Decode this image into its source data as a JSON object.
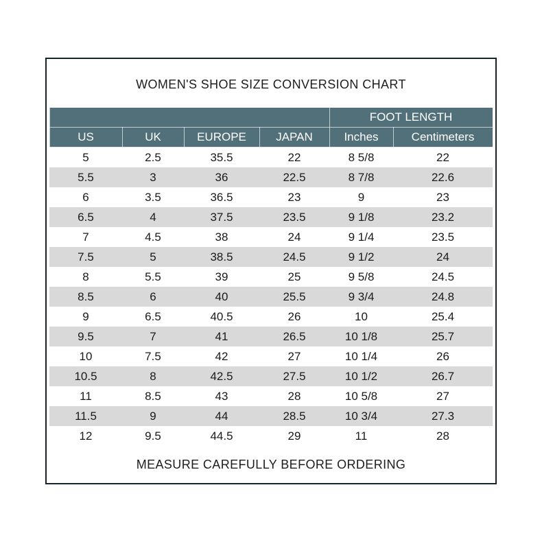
{
  "title": "WOMEN'S SHOE SIZE CONVERSION CHART",
  "footer": "MEASURE CAREFULLY BEFORE ORDERING",
  "chart_data": {
    "type": "table",
    "group_header": "FOOT LENGTH",
    "group_header_spans": [
      "Inches",
      "Centimeters"
    ],
    "columns": [
      "US",
      "UK",
      "EUROPE",
      "JAPAN",
      "Inches",
      "Centimeters"
    ],
    "rows": [
      [
        "5",
        "2.5",
        "35.5",
        "22",
        "8 5/8",
        "22"
      ],
      [
        "5.5",
        "3",
        "36",
        "22.5",
        "8 7/8",
        "22.6"
      ],
      [
        "6",
        "3.5",
        "36.5",
        "23",
        "9",
        "23"
      ],
      [
        "6.5",
        "4",
        "37.5",
        "23.5",
        "9 1/8",
        "23.2"
      ],
      [
        "7",
        "4.5",
        "38",
        "24",
        "9 1/4",
        "23.5"
      ],
      [
        "7.5",
        "5",
        "38.5",
        "24.5",
        "9 1/2",
        "24"
      ],
      [
        "8",
        "5.5",
        "39",
        "25",
        "9 5/8",
        "24.5"
      ],
      [
        "8.5",
        "6",
        "40",
        "25.5",
        "9 3/4",
        "24.8"
      ],
      [
        "9",
        "6.5",
        "40.5",
        "26",
        "10",
        "25.4"
      ],
      [
        "9.5",
        "7",
        "41",
        "26.5",
        "10 1/8",
        "25.7"
      ],
      [
        "10",
        "7.5",
        "42",
        "27",
        "10 1/4",
        "26"
      ],
      [
        "10.5",
        "8",
        "42.5",
        "27.5",
        "10 1/2",
        "26.7"
      ],
      [
        "11",
        "8.5",
        "43",
        "28",
        "10 5/8",
        "27"
      ],
      [
        "11.5",
        "9",
        "44",
        "28.5",
        "10 3/4",
        "27.3"
      ],
      [
        "12",
        "9.5",
        "44.5",
        "29",
        "11",
        "28"
      ]
    ]
  },
  "colors": {
    "header_bg": "#527079",
    "header_text": "#ffffff",
    "stripe_bg": "#d9d9d9",
    "frame_border": "#15232b",
    "text": "#1a1a1a"
  }
}
